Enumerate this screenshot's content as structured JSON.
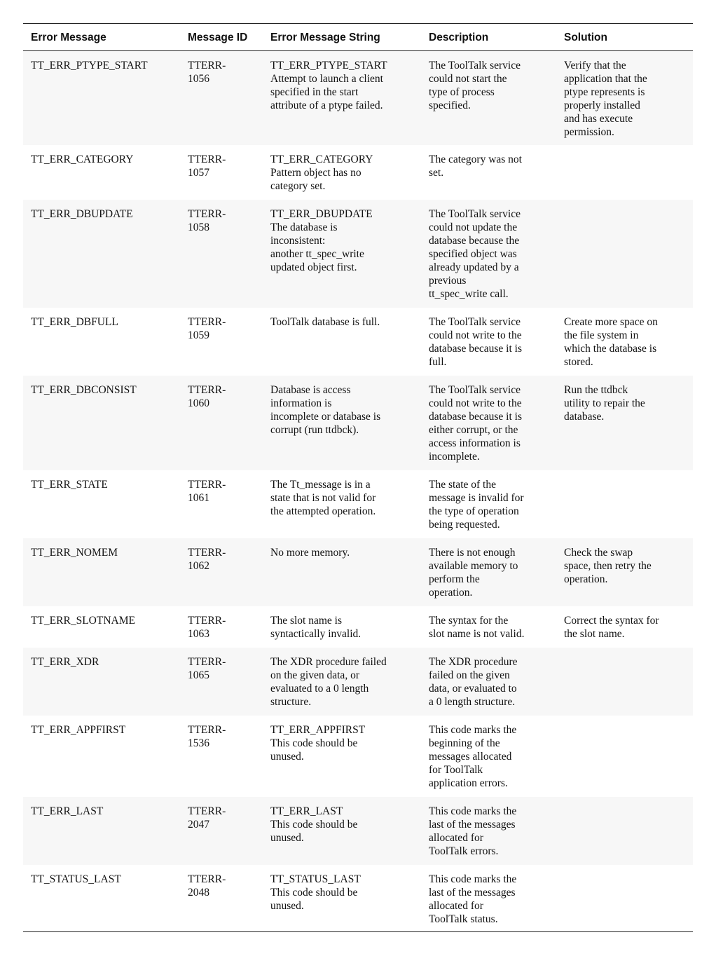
{
  "table": {
    "headers": [
      "Error Message",
      "Message ID",
      "Error Message String",
      "Description",
      "Solution"
    ],
    "rows": [
      [
        "TT_ERR_PTYPE_START",
        "TTERR-\n1056",
        "TT_ERR_PTYPE_START\nAttempt to launch a client\nspecified in the start\nattribute of a ptype failed.",
        "The ToolTalk service\ncould not start the\ntype of process\nspecified.",
        "Verify that the\napplication that the\nptype represents is\nproperly installed\nand has execute\npermission."
      ],
      [
        "TT_ERR_CATEGORY",
        "TTERR-\n1057",
        "TT_ERR_CATEGORY\nPattern object has no\ncategory set.",
        "The category was not\nset.",
        ""
      ],
      [
        "TT_ERR_DBUPDATE",
        "TTERR-\n1058",
        "TT_ERR_DBUPDATE\nThe database is\ninconsistent:\nanother tt_spec_write\nupdated object first.",
        "The ToolTalk service\ncould not update the\ndatabase because the\nspecified object was\nalready updated by a\nprevious\ntt_spec_write call.",
        ""
      ],
      [
        "TT_ERR_DBFULL",
        "TTERR-\n1059",
        "ToolTalk database is full.",
        "The ToolTalk service\ncould not write to the\ndatabase because it is\nfull.",
        "Create more space on\nthe file system in\nwhich the database is\nstored."
      ],
      [
        "TT_ERR_DBCONSIST",
        "TTERR-\n1060",
        "Database is access\ninformation is\nincomplete or database is\ncorrupt (run ttdbck).",
        "The ToolTalk service\ncould not write to the\ndatabase because it is\neither corrupt, or the\naccess information is\nincomplete.",
        "Run the ttdbck\nutility to repair the\ndatabase."
      ],
      [
        "TT_ERR_STATE",
        "TTERR-\n1061",
        "The Tt_message is in a\nstate that is not valid for\nthe attempted operation.",
        "The state of the\nmessage is invalid for\nthe type of operation\nbeing requested.",
        ""
      ],
      [
        "TT_ERR_NOMEM",
        "TTERR-\n1062",
        "No more memory.",
        "There is not enough\navailable memory to\nperform the\noperation.",
        "Check the swap\nspace, then retry the\noperation."
      ],
      [
        "TT_ERR_SLOTNAME",
        "TTERR-\n1063",
        "The slot name is\nsyntactically invalid.",
        "The syntax for the\nslot name is not valid.",
        "Correct the syntax for\nthe slot name."
      ],
      [
        "TT_ERR_XDR",
        "TTERR-\n1065",
        "The XDR procedure failed\non the given data, or\nevaluated to a 0 length\nstructure.",
        "The XDR procedure\nfailed on the given\ndata, or evaluated to\na 0 length structure.",
        ""
      ],
      [
        "TT_ERR_APPFIRST",
        "TTERR-\n1536",
        "TT_ERR_APPFIRST\nThis code should be\nunused.",
        "This code marks the\nbeginning of the\nmessages allocated\nfor ToolTalk\napplication errors.",
        ""
      ],
      [
        "TT_ERR_LAST",
        "TTERR-\n2047",
        "TT_ERR_LAST\nThis code should be\nunused.",
        "This code marks the\nlast of the messages\nallocated for\nToolTalk errors.",
        ""
      ],
      [
        "TT_STATUS_LAST",
        "TTERR-\n2048",
        "TT_STATUS_LAST\nThis code should be\nunused.",
        "This code marks the\nlast of the messages\nallocated for\nToolTalk status.",
        ""
      ]
    ]
  }
}
